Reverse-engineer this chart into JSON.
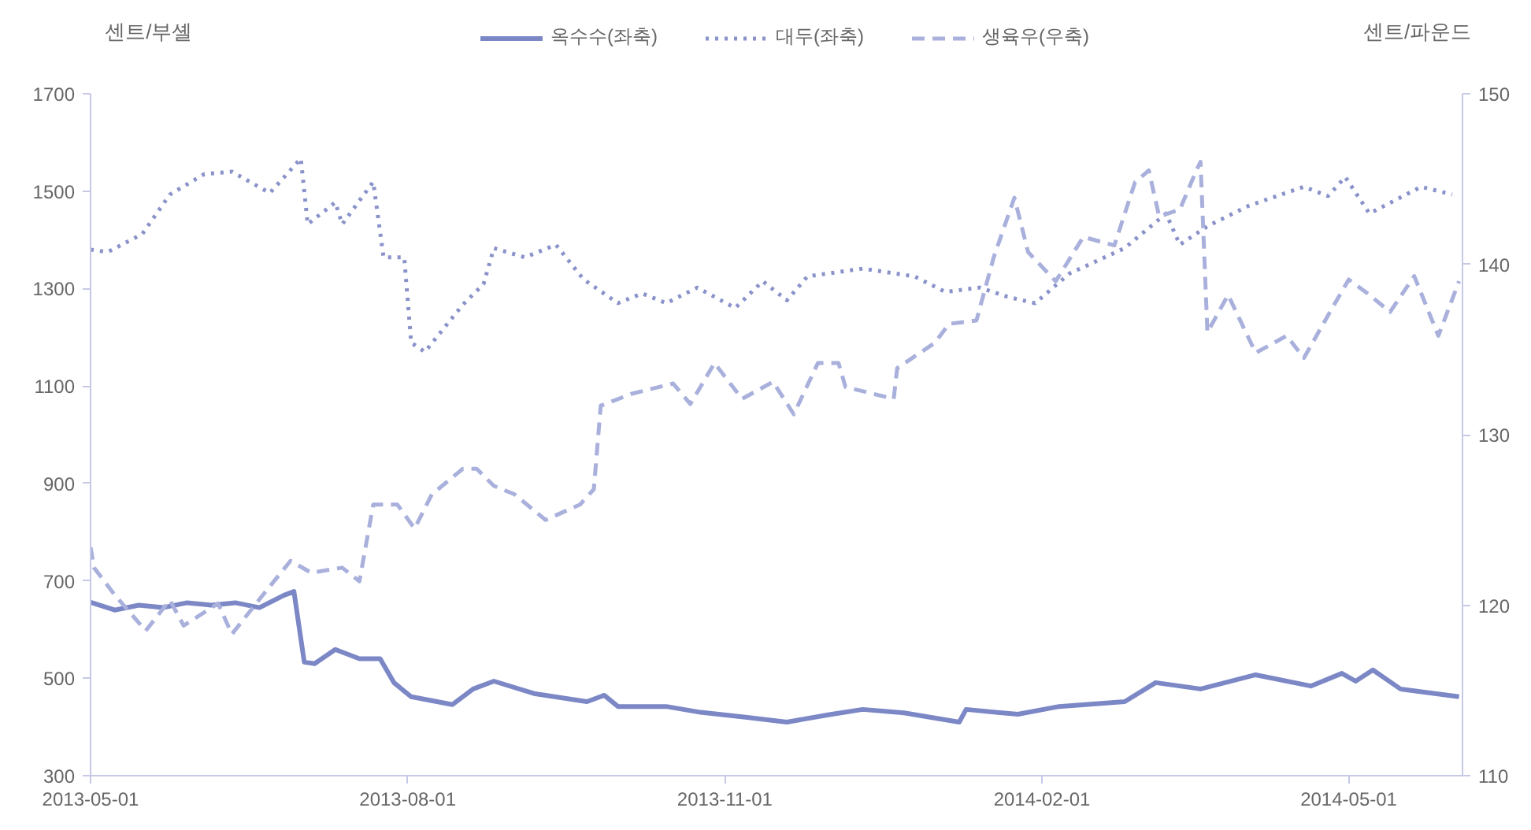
{
  "chart_data": {
    "type": "line",
    "ylabel": "센트/부셸",
    "y2label": "센트/파운드",
    "xlim": [
      "2013-05-01",
      "2014-06-03"
    ],
    "xticks": [
      "2013-05-01",
      "2013-08-01",
      "2013-11-01",
      "2014-02-01",
      "2014-05-01"
    ],
    "ylim": [
      300,
      1700
    ],
    "yticks": [
      300,
      500,
      700,
      900,
      1100,
      1300,
      1500,
      1700
    ],
    "y2lim": [
      110,
      150
    ],
    "y2ticks": [
      110,
      120,
      130,
      140,
      150
    ],
    "grid": false,
    "legend": "top",
    "marker": "none",
    "series": [
      {
        "name": "옥수수(좌축)",
        "color": "#7c87c6",
        "line_style": "solid",
        "x": [
          "2013-05-01",
          "2013-05-08",
          "2013-05-15",
          "2013-05-22",
          "2013-05-29",
          "2013-06-05",
          "2013-06-12",
          "2013-06-19",
          "2013-06-26",
          "2013-06-29",
          "2013-07-02",
          "2013-07-05",
          "2013-07-11",
          "2013-07-18",
          "2013-07-24",
          "2013-07-28",
          "2013-08-02",
          "2013-08-14",
          "2013-08-20",
          "2013-08-26",
          "2013-09-07",
          "2013-09-22",
          "2013-09-27",
          "2013-10-01",
          "2013-10-15",
          "2013-10-25",
          "2013-11-07",
          "2013-11-19",
          "2013-12-01",
          "2013-12-11",
          "2013-12-23",
          "2014-01-08",
          "2014-01-10",
          "2014-01-25",
          "2014-02-06",
          "2014-02-25",
          "2014-03-06",
          "2014-03-19",
          "2014-04-04",
          "2014-04-20",
          "2014-04-29",
          "2014-05-03",
          "2014-05-08",
          "2014-05-16",
          "2014-06-02"
        ],
        "values": [
          656,
          640,
          650,
          645,
          655,
          650,
          655,
          645,
          670,
          678,
          533,
          530,
          559,
          540,
          540,
          491,
          462,
          446,
          478,
          494,
          468,
          452,
          465,
          442,
          442,
          430,
          420,
          410,
          425,
          436,
          429,
          410,
          436,
          426,
          442,
          452,
          491,
          478,
          507,
          484,
          510,
          494,
          517,
          478,
          462
        ]
      },
      {
        "name": "대두(좌축)",
        "color": "#8a92ca",
        "line_style": "dotted",
        "x": [
          "2013-05-01",
          "2013-05-06",
          "2013-05-16",
          "2013-05-24",
          "2013-06-03",
          "2013-06-11",
          "2013-06-22",
          "2013-07-01",
          "2013-07-03",
          "2013-07-11",
          "2013-07-13",
          "2013-07-22",
          "2013-07-25",
          "2013-07-31",
          "2013-08-02",
          "2013-08-06",
          "2013-08-17",
          "2013-08-23",
          "2013-08-26",
          "2013-09-04",
          "2013-09-13",
          "2013-09-21",
          "2013-10-01",
          "2013-10-08",
          "2013-10-15",
          "2013-10-24",
          "2013-11-04",
          "2013-11-12",
          "2013-11-19",
          "2013-11-25",
          "2013-12-11",
          "2013-12-26",
          "2014-01-04",
          "2014-01-14",
          "2014-01-22",
          "2014-01-30",
          "2014-02-09",
          "2014-02-25",
          "2014-03-09",
          "2014-03-13",
          "2014-03-21",
          "2014-04-02",
          "2014-04-18",
          "2014-04-25",
          "2014-04-30",
          "2014-05-07",
          "2014-05-22",
          "2014-05-31"
        ],
        "values": [
          1380,
          1375,
          1412,
          1493,
          1535,
          1540,
          1496,
          1567,
          1432,
          1477,
          1432,
          1519,
          1364,
          1364,
          1189,
          1170,
          1267,
          1309,
          1383,
          1364,
          1390,
          1319,
          1270,
          1290,
          1270,
          1302,
          1260,
          1315,
          1276,
          1325,
          1341,
          1325,
          1293,
          1302,
          1283,
          1270,
          1331,
          1383,
          1454,
          1390,
          1428,
          1470,
          1509,
          1490,
          1529,
          1454,
          1509,
          1493
        ]
      },
      {
        "name": "생육우(우축)",
        "color": "#a9b0dc",
        "line_style": "dashed",
        "axis": "y2",
        "x": [
          "2013-05-01",
          "2013-05-02",
          "2013-05-08",
          "2013-05-17",
          "2013-05-24",
          "2013-05-28",
          "2013-06-07",
          "2013-06-11",
          "2013-06-20",
          "2013-06-28",
          "2013-07-04",
          "2013-07-13",
          "2013-07-18",
          "2013-07-22",
          "2013-07-29",
          "2013-08-03",
          "2013-08-08",
          "2013-08-17",
          "2013-08-21",
          "2013-08-26",
          "2013-09-01",
          "2013-09-10",
          "2013-09-20",
          "2013-09-24",
          "2013-09-26",
          "2013-10-05",
          "2013-10-17",
          "2013-10-22",
          "2013-10-29",
          "2013-11-06",
          "2013-11-15",
          "2013-11-21",
          "2013-11-28",
          "2013-12-04",
          "2013-12-06",
          "2013-12-20",
          "2013-12-21",
          "2014-01-01",
          "2014-01-05",
          "2014-01-13",
          "2014-01-18",
          "2014-01-24",
          "2014-01-28",
          "2014-02-05",
          "2014-02-13",
          "2014-02-22",
          "2014-02-28",
          "2014-03-04",
          "2014-03-07",
          "2014-03-13",
          "2014-03-18",
          "2014-03-19",
          "2014-03-21",
          "2014-03-27",
          "2014-04-04",
          "2014-04-13",
          "2014-04-18",
          "2014-04-25",
          "2014-05-01",
          "2014-05-07",
          "2014-05-13",
          "2014-05-20",
          "2014-05-27",
          "2014-06-02"
        ],
        "values": [
          123.4,
          122.2,
          120.6,
          118.5,
          120.3,
          118.8,
          120.1,
          118.3,
          120.6,
          122.6,
          121.9,
          122.2,
          121.4,
          125.9,
          125.9,
          124.5,
          126.5,
          128.0,
          128.0,
          127.0,
          126.5,
          125.0,
          125.9,
          126.8,
          131.7,
          132.4,
          133.0,
          131.8,
          134.2,
          132.1,
          133.1,
          131.2,
          134.2,
          134.2,
          132.8,
          132.1,
          133.9,
          135.4,
          136.5,
          136.7,
          140.4,
          143.9,
          140.7,
          139.0,
          141.6,
          141.1,
          144.8,
          145.5,
          142.8,
          143.2,
          145.6,
          146.0,
          136.0,
          138.2,
          134.8,
          135.8,
          134.5,
          137.0,
          139.1,
          138.2,
          137.2,
          139.3,
          135.8,
          139.0
        ]
      }
    ]
  }
}
